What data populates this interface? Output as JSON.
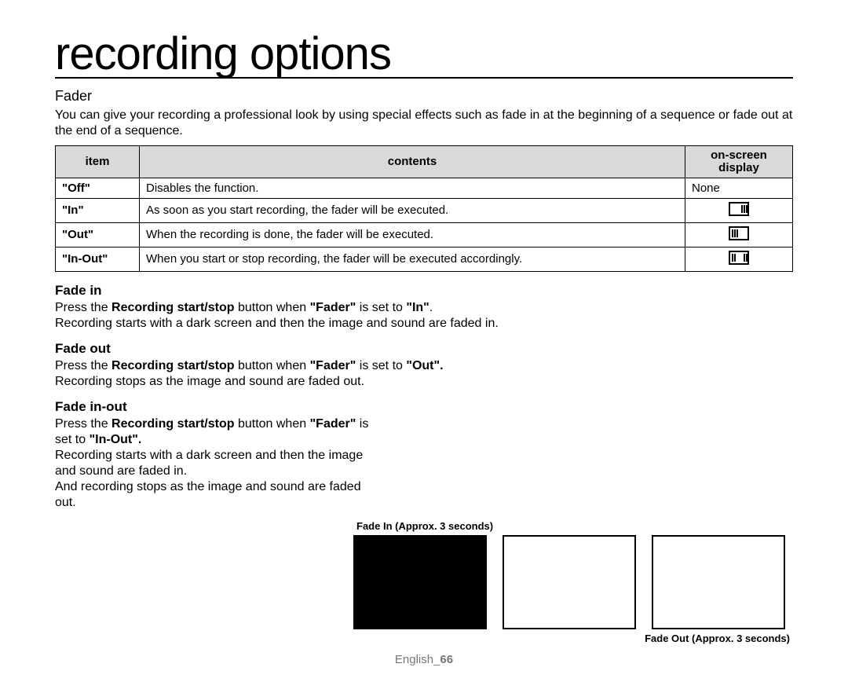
{
  "title": "recording options",
  "fader": {
    "heading": "Fader",
    "intro": "You can give your recording a professional look by using special effects such as fade in at the beginning of a sequence or fade out at the end of a sequence.",
    "table": {
      "headers": {
        "item": "item",
        "contents": "contents",
        "display": "on-screen display"
      },
      "rows": [
        {
          "item": "\"Off\"",
          "contents": "Disables the function.",
          "display_text": "None",
          "icon": "none"
        },
        {
          "item": "\"In\"",
          "contents": "As soon as you start recording, the fader will be executed.",
          "display_text": "",
          "icon": "in"
        },
        {
          "item": "\"Out\"",
          "contents": "When the recording is done, the fader will be executed.",
          "display_text": "",
          "icon": "out"
        },
        {
          "item": "\"In-Out\"",
          "contents": "When you start or stop recording, the fader will be executed accordingly.",
          "display_text": "",
          "icon": "inout"
        }
      ]
    }
  },
  "fade_in": {
    "heading": "Fade in",
    "line1_prefix": "Press the ",
    "line1_bold1": "Recording start/stop",
    "line1_mid": " button when ",
    "line1_bold2": "\"Fader\"",
    "line1_mid2": " is set to ",
    "line1_bold3": "\"In\"",
    "line1_suffix": ".",
    "line2": "Recording starts with a dark screen and then the image and sound are faded in."
  },
  "fade_out": {
    "heading": "Fade out",
    "line1_prefix": "Press the ",
    "line1_bold1": "Recording start/stop",
    "line1_mid": " button when ",
    "line1_bold2": "\"Fader\"",
    "line1_mid2": " is set to ",
    "line1_bold3": "\"Out\".",
    "line2": "Recording stops as the image and sound are faded out."
  },
  "fade_inout": {
    "heading": "Fade in-out",
    "line1_prefix": "Press the ",
    "line1_bold1": "Recording start/stop",
    "line1_mid": " button when ",
    "line1_bold2": "\"Fader\"",
    "line1_mid2": " is set to ",
    "line1_bold3": "\"In-Out\".",
    "line2": "Recording starts with a dark screen and then the image and sound are faded in.",
    "line3": "And recording stops as the image and sound are faded out."
  },
  "diagram": {
    "caption_top": "Fade In (Approx. 3 seconds)",
    "caption_bottom": "Fade Out (Approx. 3 seconds)",
    "frames": [
      {
        "fill": "#000000"
      },
      {
        "fill": "#ffffff"
      },
      {
        "fill": "#ffffff"
      }
    ]
  },
  "footer": {
    "lang": "English",
    "sep": "_",
    "page": "66"
  },
  "icon_style": {
    "border_color": "#000000",
    "bar_positions": {
      "in": [
        "14px",
        "17px",
        "20px"
      ],
      "out": [
        "2px",
        "5px",
        "8px"
      ],
      "inout": [
        "2px",
        "5px",
        "17px",
        "20px"
      ]
    }
  }
}
